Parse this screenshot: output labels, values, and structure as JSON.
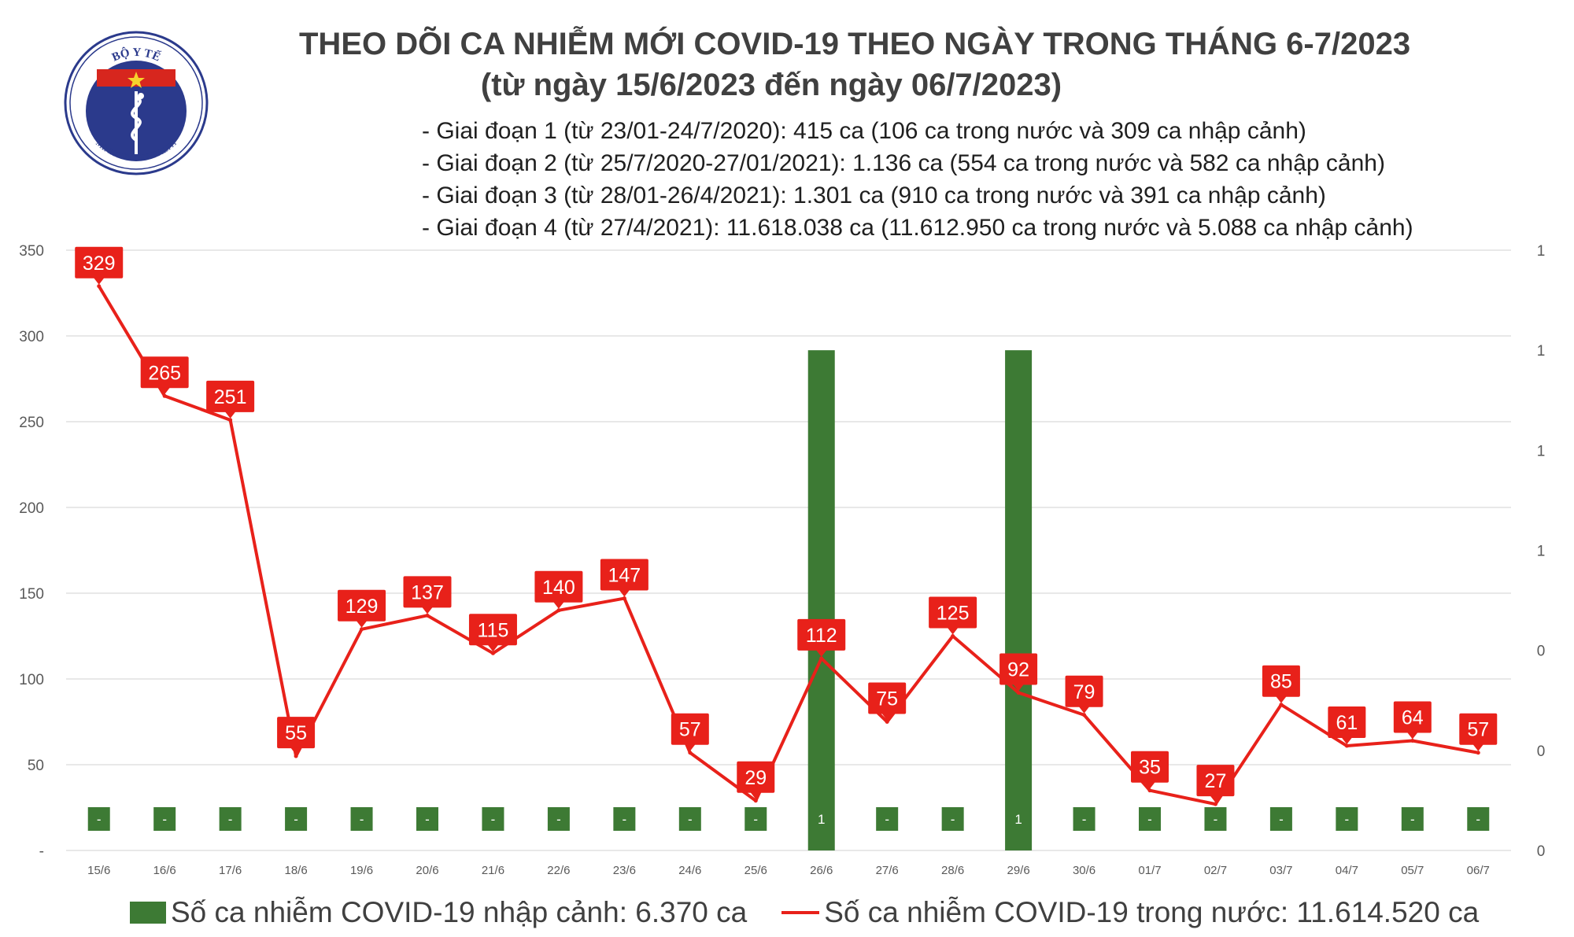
{
  "header": {
    "title_line1": "THEO DÕI CA NHIỄM MỚI COVID-19 THEO NGÀY TRONG THÁNG 6-7/2023",
    "title_line2": "(từ ngày 15/6/2023 đến ngày 06/7/2023)",
    "phases": [
      "- Giai đoạn 1 (từ 23/01-24/7/2020): 415 ca (106 ca trong nước và 309 ca nhập cảnh)",
      "- Giai đoạn 2 (từ 25/7/2020-27/01/2021): 1.136 ca (554 ca trong nước và 582 ca nhập cảnh)",
      "- Giai đoạn 3 (từ 28/01-26/4/2021): 1.301 ca (910 ca trong nước và 391 ca nhập cảnh)",
      "- Giai đoạn 4 (từ 27/4/2021): 11.618.038 ca (11.612.950 ca trong nước và 5.088 ca nhập cảnh)"
    ]
  },
  "logo": {
    "top_text": "BỘ Y TẾ",
    "bottom_text": "MINISTRY OF HEALTH"
  },
  "legend": {
    "bar_label": "Số ca nhiễm COVID-19 nhập cảnh: 6.370 ca",
    "line_label": "Số ca nhiễm COVID-19 trong nước: 11.614.520 ca"
  },
  "chart_data": {
    "type": "bar+line",
    "categories": [
      "15/6",
      "16/6",
      "17/6",
      "18/6",
      "19/6",
      "20/6",
      "21/6",
      "22/6",
      "23/6",
      "24/6",
      "25/6",
      "26/6",
      "27/6",
      "28/6",
      "29/6",
      "30/6",
      "01/7",
      "02/7",
      "03/7",
      "04/7",
      "05/7",
      "06/7"
    ],
    "left_axis": {
      "ticks": [
        "-",
        "50",
        "100",
        "150",
        "200",
        "250",
        "300",
        "350"
      ],
      "ylim": [
        0,
        350
      ]
    },
    "right_axis": {
      "ticks": [
        "0",
        "0",
        "0",
        "1",
        "1",
        "1",
        "1"
      ],
      "ylim": [
        0,
        1.2
      ]
    },
    "series": [
      {
        "name": "Số ca nhiễm COVID-19 nhập cảnh: 6.370 ca",
        "kind": "bar",
        "axis": "right",
        "values": [
          0,
          0,
          0,
          0,
          0,
          0,
          0,
          0,
          0,
          0,
          0,
          1,
          0,
          0,
          1,
          0,
          0,
          0,
          0,
          0,
          0,
          0
        ],
        "labels": [
          "-",
          "-",
          "-",
          "-",
          "-",
          "-",
          "-",
          "-",
          "-",
          "-",
          "-",
          "1",
          "-",
          "-",
          "1",
          "-",
          "-",
          "-",
          "-",
          "-",
          "-",
          "-"
        ]
      },
      {
        "name": "Số ca nhiễm COVID-19 trong nước: 11.614.520 ca",
        "kind": "line",
        "axis": "left",
        "values": [
          329,
          265,
          251,
          55,
          129,
          137,
          115,
          140,
          147,
          57,
          29,
          112,
          75,
          125,
          92,
          79,
          35,
          27,
          85,
          61,
          64,
          57
        ]
      }
    ],
    "colors": {
      "bar": "#3d7a34",
      "line": "#e8211a",
      "grid": "#d9d9d9",
      "axis_text": "#595959"
    }
  }
}
